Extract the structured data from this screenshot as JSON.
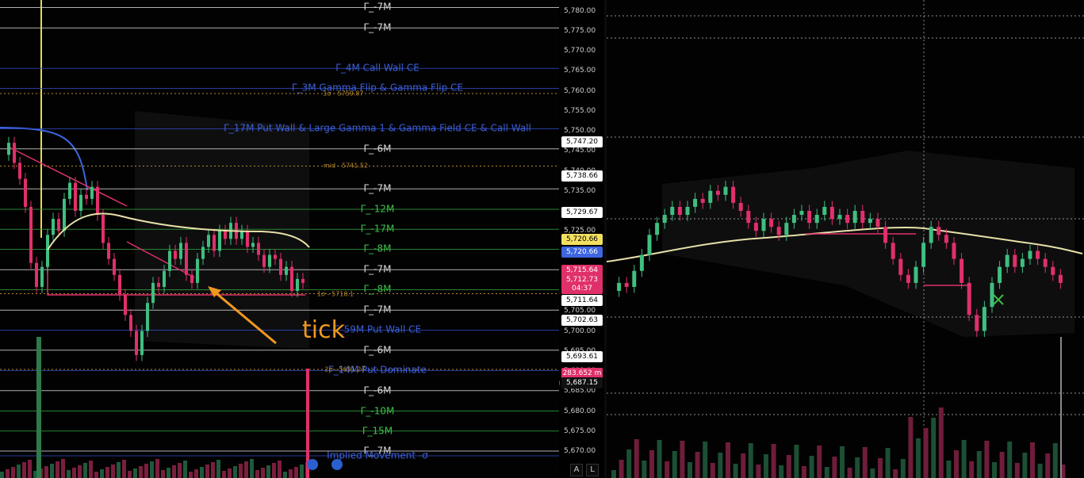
{
  "colors": {
    "background": "#020203",
    "white_line": "#cfcfcf",
    "green_line": "#2f9a3a",
    "blue_line": "#2e47b8",
    "candle_up": "#3fbf7f",
    "candle_down": "#e0306a",
    "vwap": "#e8e0a8",
    "annotation": "#f0981e"
  },
  "price_axis": {
    "ticks": [
      "5,780.00",
      "5,775.00",
      "5,770.00",
      "5,765.00",
      "5,760.00",
      "5,755.00",
      "5,750.00",
      "5,745.00",
      "5,740.00",
      "5,735.00",
      "5,730.00",
      "5,725.00",
      "5,720.00",
      "5,715.00",
      "5,710.00",
      "5,705.00",
      "5,700.00",
      "5,695.00",
      "5,690.00",
      "5,685.00",
      "5,680.00",
      "5,675.00",
      "5,670.00"
    ],
    "badges": [
      {
        "text": "5,747.20",
        "price": 5747.2,
        "bg": "#ffffff",
        "fg": "#000000"
      },
      {
        "text": "5,738.66",
        "price": 5738.66,
        "bg": "#ffffff",
        "fg": "#000000"
      },
      {
        "text": "5,729.67",
        "price": 5729.67,
        "bg": "#ffffff",
        "fg": "#000000"
      },
      {
        "text": "5,720.66",
        "price": 5722.9,
        "bg": "#f3e060",
        "fg": "#000000"
      },
      {
        "text": "5,720.66",
        "price": 5719.8,
        "bg": "#3d66e0",
        "fg": "#ffffff"
      },
      {
        "text": "5,715.64",
        "price": 5715.1,
        "bg": "#e0306a",
        "fg": "#ffffff"
      },
      {
        "text": "5,712.73",
        "price": 5712.7,
        "bg": "#e0306a",
        "fg": "#ffffff"
      },
      {
        "text": "04:37",
        "price": 5710.6,
        "bg": "#e0306a",
        "fg": "#ffffff"
      },
      {
        "text": "5,711.64",
        "price": 5707.6,
        "bg": "#ffffff",
        "fg": "#000000"
      },
      {
        "text": "5,702.63",
        "price": 5702.6,
        "bg": "#ffffff",
        "fg": "#000000"
      },
      {
        "text": "5,693.61",
        "price": 5693.6,
        "bg": "#ffffff",
        "fg": "#000000"
      },
      {
        "text": "283.652 m",
        "price": 5689.5,
        "bg": "#e0306a",
        "fg": "#ffffff"
      },
      {
        "text": "5,687.15",
        "price": 5687.1,
        "bg": "#111111",
        "fg": "#ffffff"
      }
    ],
    "buttons": [
      "A",
      "L"
    ],
    "plus_icon": "plus-icon"
  },
  "levels": [
    {
      "label": "Γ_-7M",
      "price": 5780.8,
      "color": "white"
    },
    {
      "label": "Γ_-7M",
      "price": 5775.7,
      "color": "white"
    },
    {
      "label": "Γ_4M  Call Wall CE",
      "price": 5765.6,
      "color": "blue"
    },
    {
      "label": "Γ_3M  Gamma Flip & Gamma Flip CE",
      "price": 5760.6,
      "color": "blue"
    },
    {
      "label": "Γ_17M  Put Wall & Large Gamma 1 & Gamma Field CE & Call Wall",
      "price": 5750.5,
      "color": "blue"
    },
    {
      "label": "Γ_-6M",
      "price": 5745.5,
      "color": "white"
    },
    {
      "label": "Γ_-7M",
      "price": 5735.5,
      "color": "white"
    },
    {
      "label": "Γ_-12M",
      "price": 5730.4,
      "color": "green"
    },
    {
      "label": "Γ_-17M",
      "price": 5725.4,
      "color": "green"
    },
    {
      "label": "Γ_-8M",
      "price": 5720.4,
      "color": "green"
    },
    {
      "label": "Γ_-7M",
      "price": 5715.3,
      "color": "white"
    },
    {
      "label": "Γ_-8M",
      "price": 5710.3,
      "color": "green"
    },
    {
      "label": "Γ_-7M",
      "price": 5705.2,
      "color": "white"
    },
    {
      "label": "Γ_59M  Put Wall CE",
      "price": 5700.2,
      "color": "blue"
    },
    {
      "label": "Γ_-6M",
      "price": 5695.2,
      "color": "white"
    },
    {
      "label": "Γ_14M  Put Dominate",
      "price": 5690.1,
      "color": "blue"
    },
    {
      "label": "Γ_-6M",
      "price": 5685.1,
      "color": "white"
    },
    {
      "label": "Γ_-10M",
      "price": 5680.0,
      "color": "green"
    },
    {
      "label": "Γ_15M",
      "price": 5675.0,
      "color": "green"
    },
    {
      "label": "Γ_-7M",
      "price": 5670.0,
      "color": "white"
    },
    {
      "label": "Implied Movement  -σ",
      "price": 5668.8,
      "color": "blue"
    }
  ],
  "notes": [
    {
      "text": "1σ - 5759.87",
      "x": 433,
      "price": 5759.3
    },
    {
      "text": "mid - 5741.52",
      "x": 436,
      "price": 5741.2
    },
    {
      "text": "1σ - 5710.1",
      "x": 423,
      "price": 5709.3
    },
    {
      "text": "2σ - 5691.27",
      "x": 435,
      "price": 5690.4
    }
  ],
  "annotation": {
    "text": "tick"
  },
  "left_candles": [
    5744,
    5747,
    5742,
    5738,
    5731,
    5717,
    5711,
    5716,
    5724,
    5728,
    5725,
    5733,
    5737,
    5730,
    5734,
    5733,
    5736,
    5729,
    5722,
    5718,
    5714,
    5709,
    5704,
    5700,
    5694,
    5700,
    5707,
    5712,
    5711,
    5715,
    5720,
    5718,
    5722,
    5714,
    5712,
    5718,
    5721,
    5724,
    5720,
    5725,
    5723,
    5727,
    5723,
    5725,
    5721,
    5722,
    5719,
    5716,
    5719,
    5718,
    5714,
    5716,
    5710,
    5713,
    5712
  ],
  "right_candles": [
    5710,
    5712,
    5711,
    5715,
    5719,
    5724,
    5727,
    5729,
    5731,
    5729,
    5731,
    5733,
    5732,
    5735,
    5734,
    5736,
    5732,
    5730,
    5727,
    5725,
    5728,
    5726,
    5724,
    5727,
    5729,
    5730,
    5727,
    5729,
    5731,
    5728,
    5729,
    5727,
    5730,
    5727,
    5728,
    5726,
    5722,
    5718,
    5714,
    5712,
    5716,
    5722,
    5726,
    5724,
    5722,
    5718,
    5712,
    5704,
    5700,
    5706,
    5712,
    5716,
    5719,
    5716,
    5718,
    5720,
    5718,
    5716,
    5714,
    5712
  ]
}
